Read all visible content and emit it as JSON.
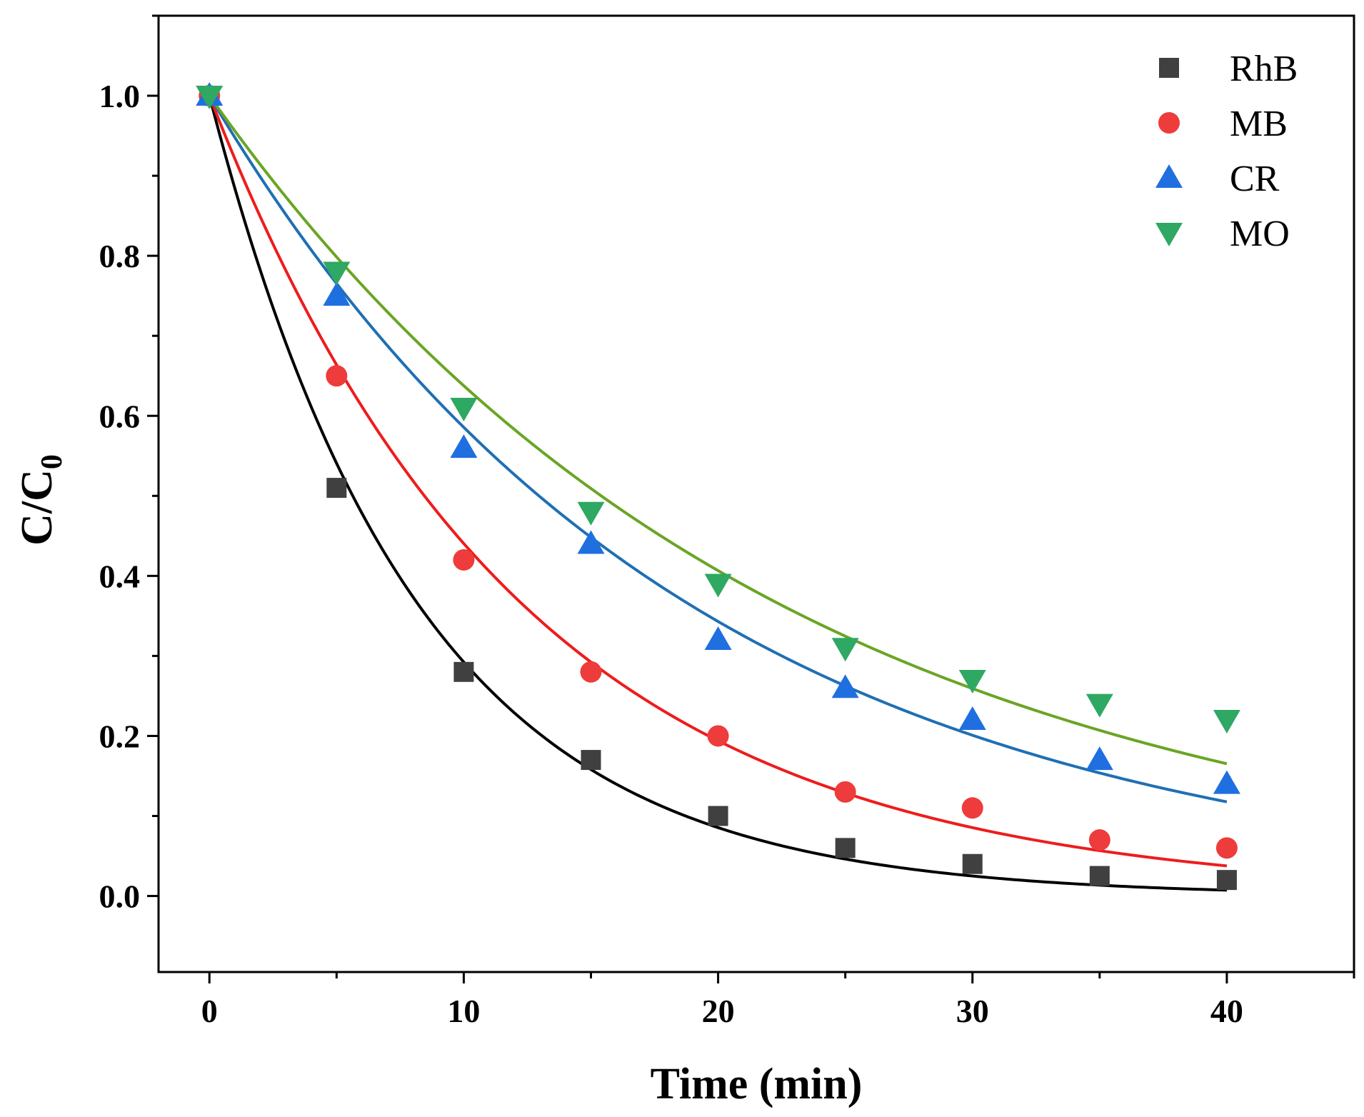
{
  "chart_data": {
    "type": "scatter",
    "title": "",
    "xlabel": "Time (min)",
    "ylabel": {
      "main": "C/C",
      "sub": "0"
    },
    "xlim": [
      -2,
      45
    ],
    "ylim": [
      -0.095,
      1.1
    ],
    "x_ticks": [
      0,
      10,
      20,
      30,
      40
    ],
    "x_tick_labels": [
      "0",
      "10",
      "20",
      "30",
      "40"
    ],
    "y_ticks": [
      0.0,
      0.2,
      0.4,
      0.6,
      0.8,
      1.0
    ],
    "y_tick_labels": [
      "0.0",
      "0.2",
      "0.4",
      "0.6",
      "0.8",
      "1.0"
    ],
    "legend_position": "top-right",
    "x": [
      0,
      5,
      10,
      15,
      20,
      25,
      30,
      35,
      40
    ],
    "series": [
      {
        "name": "RhB",
        "marker": "square",
        "color": "#404040",
        "fit_color": "#000000",
        "fit_k": 0.123,
        "values": [
          1.0,
          0.51,
          0.28,
          0.17,
          0.1,
          0.06,
          0.04,
          0.025,
          0.02
        ]
      },
      {
        "name": "MB",
        "marker": "circle",
        "color": "#ee3b3b",
        "fit_color": "#ee1c1c",
        "fit_k": 0.082,
        "values": [
          1.0,
          0.65,
          0.42,
          0.28,
          0.2,
          0.13,
          0.11,
          0.07,
          0.06
        ]
      },
      {
        "name": "CR",
        "marker": "triangle-up",
        "color": "#1f6fe0",
        "fit_color": "#1f6fb4",
        "fit_k": 0.0535,
        "values": [
          1.0,
          0.75,
          0.56,
          0.44,
          0.32,
          0.26,
          0.22,
          0.17,
          0.14
        ]
      },
      {
        "name": "MO",
        "marker": "triangle-down",
        "color": "#2ea862",
        "fit_color": "#6aa524",
        "fit_k": 0.045,
        "values": [
          1.0,
          0.78,
          0.61,
          0.48,
          0.39,
          0.31,
          0.27,
          0.24,
          0.22
        ]
      }
    ]
  }
}
